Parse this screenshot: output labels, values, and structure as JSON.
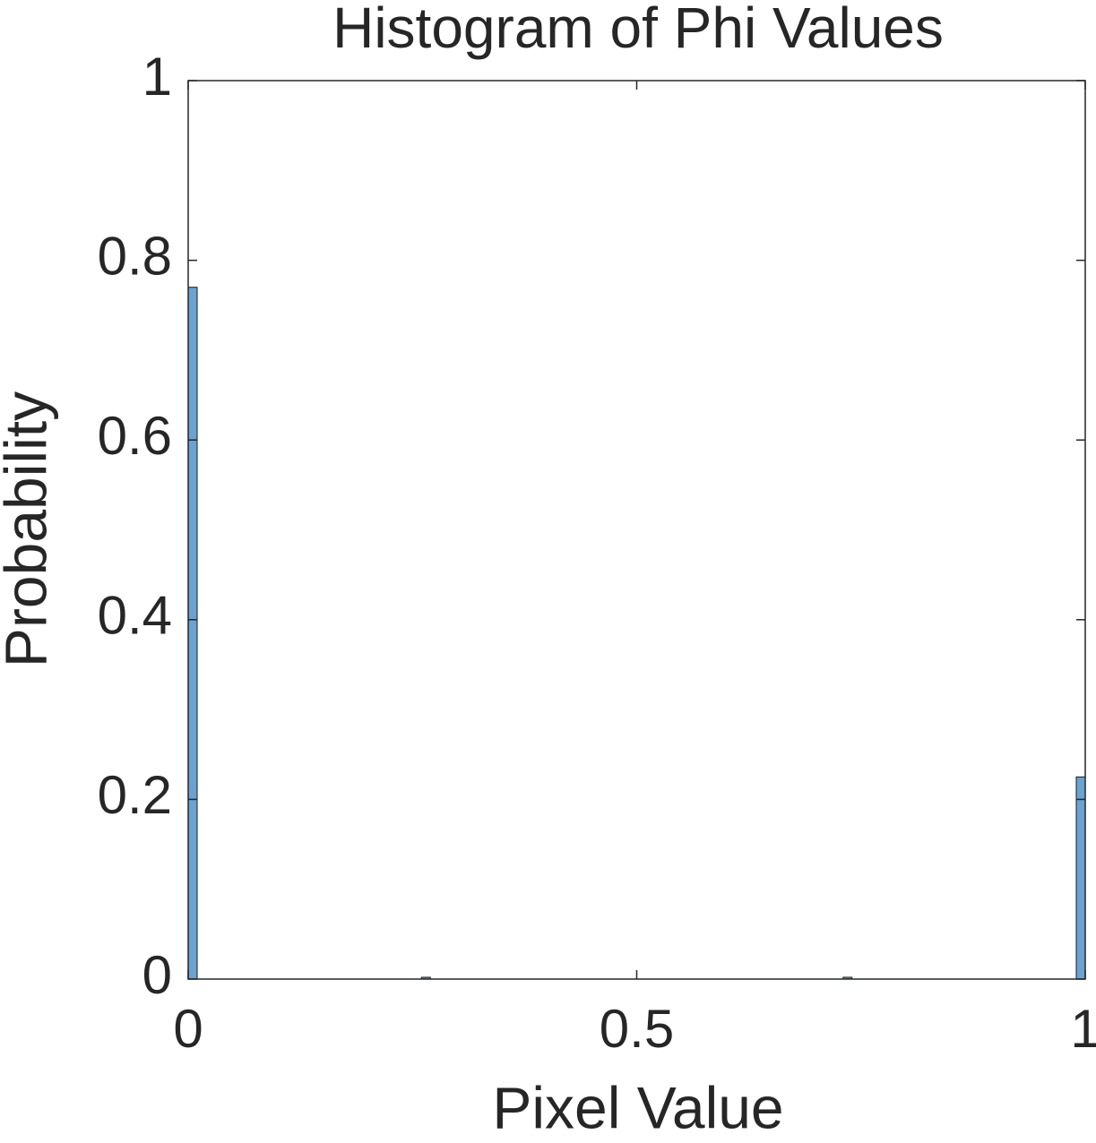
{
  "chart_data": {
    "type": "histogram",
    "title": "Histogram of Phi Values",
    "xlabel": "Pixel Value",
    "ylabel": "Probability",
    "bins": [
      0,
      0.01,
      0.02,
      0.03,
      0.04,
      0.05,
      0.06,
      0.07,
      0.08,
      0.09,
      0.1,
      0.11,
      0.12,
      0.13,
      0.14,
      0.15,
      0.16,
      0.17,
      0.18,
      0.19,
      0.2,
      0.21,
      0.22,
      0.23,
      0.24,
      0.25,
      0.26,
      0.27,
      0.28,
      0.29,
      0.3,
      0.31,
      0.32,
      0.33,
      0.34,
      0.35,
      0.36,
      0.37,
      0.38,
      0.39,
      0.4,
      0.41,
      0.42,
      0.43,
      0.44,
      0.45,
      0.46,
      0.47,
      0.48,
      0.49,
      0.5,
      0.51,
      0.52,
      0.53,
      0.54,
      0.55,
      0.56,
      0.57,
      0.58,
      0.59,
      0.6,
      0.61,
      0.62,
      0.63,
      0.64,
      0.65,
      0.66,
      0.67,
      0.68,
      0.69,
      0.7,
      0.71,
      0.72,
      0.73,
      0.74,
      0.75,
      0.76,
      0.77,
      0.78,
      0.79,
      0.8,
      0.81,
      0.82,
      0.83,
      0.84,
      0.85,
      0.86,
      0.87,
      0.88,
      0.89,
      0.9,
      0.91,
      0.92,
      0.93,
      0.94,
      0.95,
      0.96,
      0.97,
      0.98,
      0.99,
      1
    ],
    "values": [
      0.77,
      0,
      0,
      0,
      0,
      0,
      0,
      0,
      0,
      0,
      0,
      0,
      0,
      0,
      0,
      0,
      0,
      0,
      0,
      0,
      0,
      0,
      0,
      0,
      0,
      0,
      0.002,
      0,
      0,
      0,
      0,
      0,
      0,
      0,
      0,
      0,
      0,
      0,
      0,
      0,
      0,
      0,
      0,
      0,
      0,
      0,
      0,
      0,
      0,
      0,
      0,
      0,
      0,
      0,
      0,
      0,
      0,
      0,
      0,
      0,
      0,
      0,
      0,
      0,
      0,
      0,
      0,
      0,
      0,
      0,
      0,
      0,
      0,
      0.002,
      0,
      0,
      0,
      0,
      0,
      0,
      0,
      0,
      0,
      0,
      0,
      0,
      0,
      0,
      0,
      0,
      0,
      0,
      0,
      0,
      0,
      0,
      0,
      0,
      0,
      0.225
    ],
    "color": "#6aa3d2",
    "xlim": [
      0,
      1
    ],
    "xticks": [
      0,
      0.5,
      1
    ],
    "ylim": [
      0,
      1
    ],
    "yticks": [
      0,
      0.2,
      0.4,
      0.6,
      0.8,
      1
    ]
  }
}
